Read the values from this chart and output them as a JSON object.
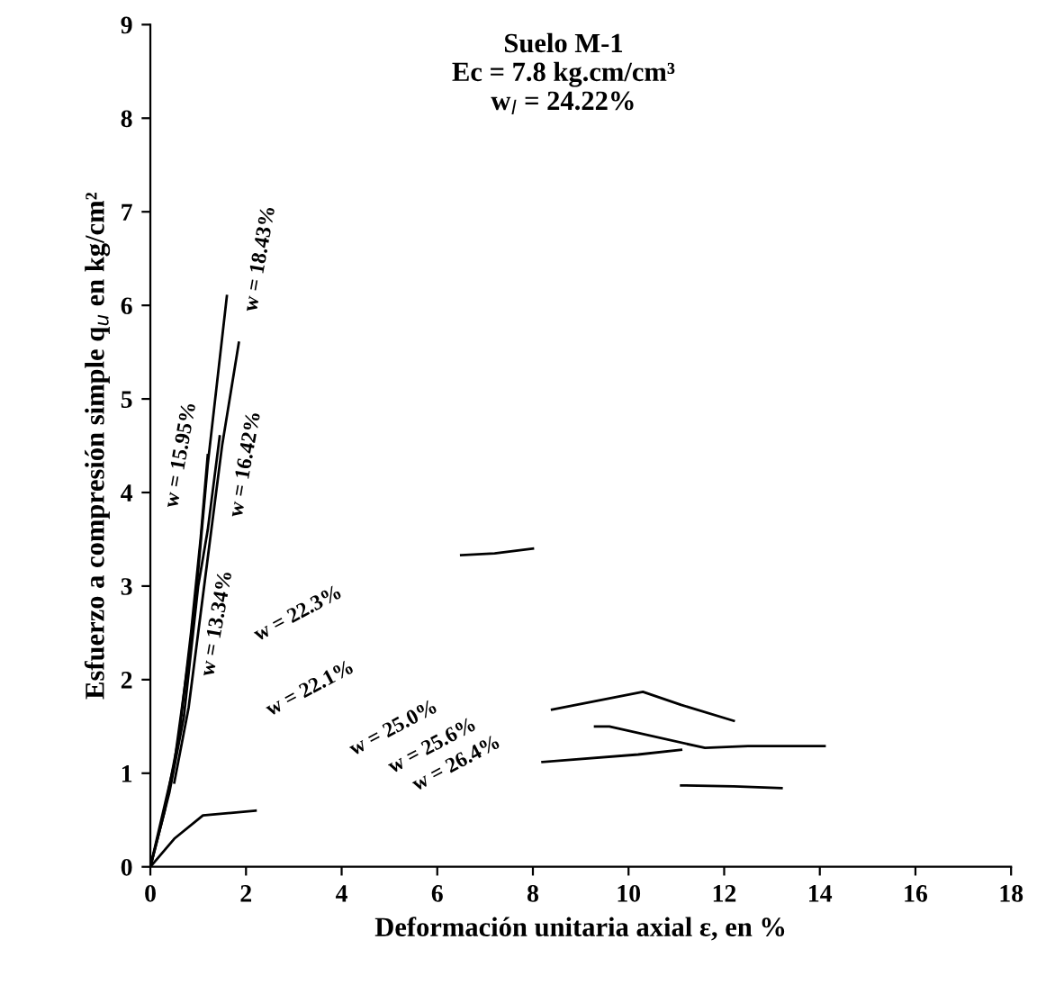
{
  "chart_data": {
    "type": "line",
    "title": "Suelo M-1",
    "subtitle": "Ec = 7.8 kg.cm/cm³\nw$_{l}$ = 24.22%",
    "xlabel": "Deformación unitaria axial ε, en %",
    "ylabel": "Esfuerzo a compresión simple q$_{u}$ en kg/cm²",
    "xlim": [
      0,
      18
    ],
    "ylim": [
      0,
      9
    ],
    "xticks": [
      0,
      2,
      4,
      6,
      8,
      10,
      12,
      14,
      16,
      18
    ],
    "yticks": [
      0,
      1,
      2,
      3,
      4,
      5,
      6,
      7,
      8,
      9
    ],
    "grid": false,
    "marker": "none",
    "line_style": "solid",
    "series": [
      {
        "color": "#000000",
        "x": [
          0,
          0.3,
          0.6,
          0.85,
          1.05,
          1.2
        ],
        "values": [
          0,
          0.6,
          1.4,
          2.5,
          3.5,
          4.4
        ]
      },
      {
        "color": "#000000",
        "x": [
          0,
          0.4,
          0.7,
          1.0,
          1.2,
          1.45
        ],
        "values": [
          0,
          0.8,
          1.6,
          3.0,
          3.6,
          4.6
        ]
      },
      {
        "color": "#000000",
        "x": [
          0.5,
          0.8,
          1.2,
          1.5,
          1.85
        ],
        "values": [
          0.9,
          1.7,
          3.3,
          4.5,
          5.6
        ]
      },
      {
        "color": "#000000",
        "x": [
          0,
          0.5,
          0.9,
          1.2,
          1.4,
          1.6
        ],
        "values": [
          0,
          1.1,
          2.6,
          4.3,
          5.2,
          6.1
        ]
      },
      {
        "color": "#000000",
        "x": [
          6.5,
          7.2,
          8
        ],
        "values": [
          3.33,
          3.35,
          3.4
        ]
      },
      {
        "color": "#000000",
        "x": [
          8.4,
          10.3,
          11.1,
          12.2
        ],
        "values": [
          1.68,
          1.87,
          1.73,
          1.56
        ]
      },
      {
        "color": "#000000",
        "x": [
          9.3,
          9.6,
          11.6,
          12.5,
          14.1
        ],
        "values": [
          1.5,
          1.5,
          1.27,
          1.29,
          1.29
        ]
      },
      {
        "color": "#000000",
        "x": [
          8.2,
          10.2,
          11.1
        ],
        "values": [
          1.12,
          1.2,
          1.25
        ]
      },
      {
        "color": "#000000",
        "x": [
          0,
          0.5,
          1.1,
          2.2,
          5,
          11.1,
          12.2,
          13.2
        ],
        "values": [
          0,
          0.3,
          0.55,
          0.6,
          null,
          0.87,
          0.86,
          0.84
        ]
      }
    ],
    "annotations": [
      "w = 15.95%",
      "w = 13.34%",
      "w = 16.42%",
      "w = 18.43%",
      "w = 22.3%",
      "w = 22.1%",
      "w = 25.0%",
      "w = 25.6%",
      "w = 26.4%"
    ]
  }
}
